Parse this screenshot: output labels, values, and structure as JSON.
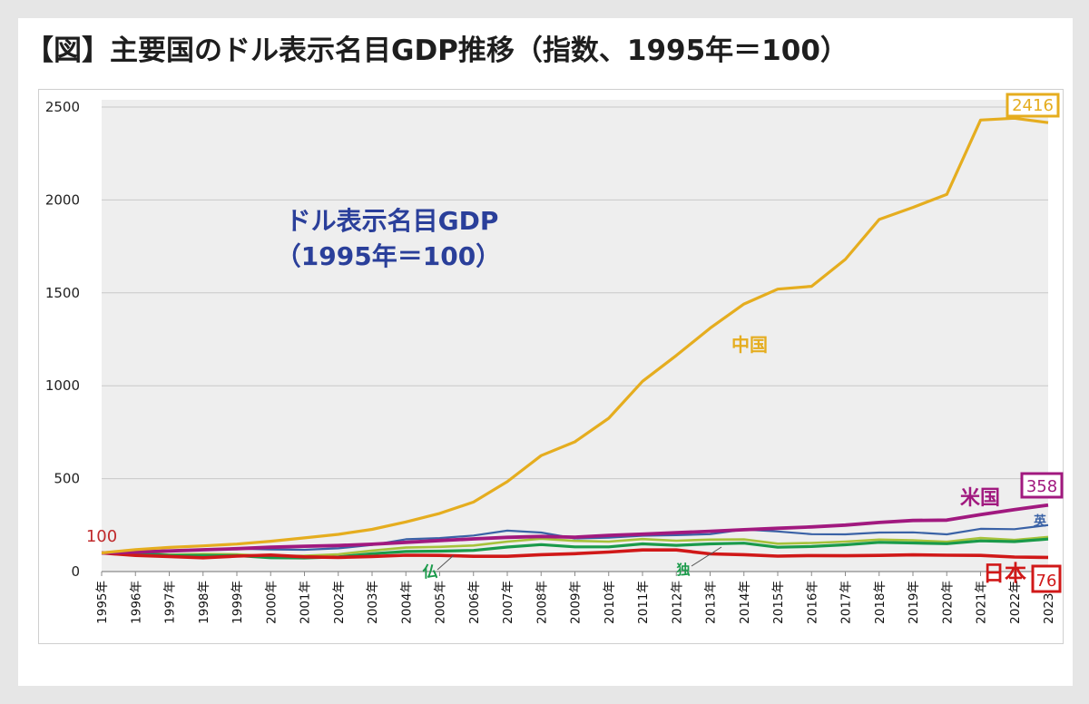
{
  "figure_title": "【図】主要国のドル表示名目GDP推移（指数、1995年＝100）",
  "colors": {
    "china": "#e5ad1f",
    "usa": "#a1197f",
    "uk": "#3a62a6",
    "germany": "#1a9a4a",
    "france": "#a6c23a",
    "japan": "#d01818",
    "plot_bg": "#eeeeee",
    "annotation_blue": "#2a3f9a"
  },
  "chart_data": {
    "type": "line",
    "title": "",
    "annotation_title": [
      "ドル表示名目GDP",
      "（1995年＝100）"
    ],
    "xlabel": "",
    "ylabel": "",
    "ylim": [
      0,
      2500
    ],
    "yticks": [
      "0",
      "500",
      "1000",
      "1500",
      "2000",
      "2500"
    ],
    "grid": true,
    "categories": [
      "1995年",
      "1996年",
      "1997年",
      "1998年",
      "1999年",
      "2000年",
      "2001年",
      "2002年",
      "2003年",
      "2004年",
      "2005年",
      "2006年",
      "2007年",
      "2008年",
      "2009年",
      "2010年",
      "2011年",
      "2012年",
      "2013年",
      "2014年",
      "2015年",
      "2016年",
      "2017年",
      "2018年",
      "2019年",
      "2020年",
      "2021年",
      "2022年",
      "2023年"
    ],
    "series": [
      {
        "key": "china",
        "name": "中国",
        "values": [
          100,
          118,
          130,
          138,
          148,
          163,
          181,
          200,
          227,
          267,
          313,
          374,
          484,
          624,
          698,
          825,
          1024,
          1163,
          1310,
          1440,
          1520,
          1535,
          1680,
          1895,
          1960,
          2030,
          2430,
          2440,
          2416
        ]
      },
      {
        "key": "uk",
        "name": "英",
        "values": [
          100,
          104,
          114,
          119,
          123,
          119,
          117,
          125,
          143,
          174,
          180,
          194,
          220,
          210,
          178,
          182,
          193,
          196,
          201,
          226,
          216,
          201,
          200,
          210,
          211,
          200,
          230,
          228,
          250
        ]
      },
      {
        "key": "france",
        "name": "仏",
        "values": [
          100,
          101,
          91,
          94,
          93,
          83,
          85,
          93,
          113,
          129,
          133,
          140,
          161,
          177,
          165,
          161,
          175,
          166,
          172,
          173,
          150,
          154,
          161,
          172,
          168,
          160,
          180,
          170,
          186
        ]
      },
      {
        "key": "germany",
        "name": "独",
        "values": [
          100,
          98,
          87,
          87,
          86,
          74,
          73,
          79,
          96,
          108,
          110,
          114,
          132,
          145,
          133,
          133,
          149,
          141,
          149,
          153,
          131,
          135,
          144,
          157,
          154,
          150,
          165,
          161,
          175
        ]
      },
      {
        "key": "usa",
        "name": "米国",
        "values": [
          100,
          105,
          111,
          117,
          123,
          131,
          136,
          140,
          147,
          157,
          167,
          176,
          184,
          189,
          185,
          195,
          201,
          209,
          217,
          225,
          233,
          240,
          250,
          264,
          275,
          277,
          306,
          333,
          358
        ]
      },
      {
        "key": "japan",
        "name": "日本",
        "values": [
          100,
          87,
          81,
          74,
          83,
          89,
          79,
          76,
          81,
          88,
          87,
          82,
          82,
          91,
          96,
          105,
          116,
          116,
          95,
          91,
          83,
          86,
          85,
          87,
          90,
          88,
          87,
          78,
          76
        ]
      }
    ],
    "data_labels": [
      {
        "key": "china",
        "text": "2416"
      },
      {
        "key": "usa",
        "text": "358"
      },
      {
        "key": "japan",
        "text": "76"
      },
      {
        "key": "start",
        "text": "100"
      }
    ]
  }
}
